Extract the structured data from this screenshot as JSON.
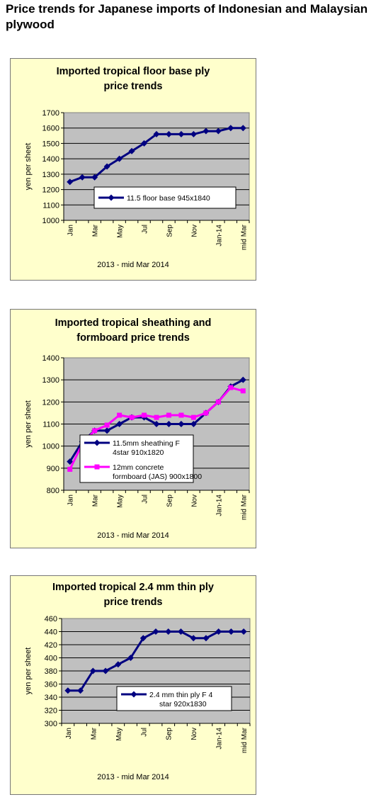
{
  "page": {
    "title": "Price trends for Japanese imports of Indonesian and Malaysian plywood"
  },
  "chart_data": [
    {
      "type": "line",
      "title_lines": [
        "Imported tropical floor base ply",
        "price trends"
      ],
      "xlabel": "2013 - mid Mar 2014",
      "ylabel": "yen per sheet",
      "ylim": [
        1000,
        1700
      ],
      "yticks": [
        1000,
        1100,
        1200,
        1300,
        1400,
        1500,
        1600,
        1700
      ],
      "categories": [
        "Jan",
        "Feb",
        "Mar",
        "Apr",
        "May",
        "Jun",
        "Jul",
        "Aug",
        "Sep",
        "Oct",
        "Nov",
        "Dec",
        "Jan-14",
        "Feb-14",
        "mid Mar"
      ],
      "xtick_labels": [
        "Jan",
        "",
        "Mar",
        "",
        "May",
        "",
        "Jul",
        "",
        "Sep",
        "",
        "Nov",
        "",
        "Jan-14",
        "",
        "mid Mar"
      ],
      "grid": true,
      "legend_position": "center",
      "series": [
        {
          "name": "11.5 floor base 945x1840",
          "color": "#000080",
          "marker": "diamond",
          "values": [
            1250,
            1280,
            1280,
            1350,
            1400,
            1450,
            1500,
            1560,
            1560,
            1560,
            1560,
            1580,
            1580,
            1600,
            1600
          ]
        }
      ]
    },
    {
      "type": "line",
      "title_lines": [
        "Imported tropical sheathing and",
        "formboard price trends"
      ],
      "xlabel": "2013 - mid Mar 2014",
      "ylabel": "yen per sheet",
      "ylim": [
        800,
        1400
      ],
      "yticks": [
        800,
        900,
        1000,
        1100,
        1200,
        1300,
        1400
      ],
      "categories": [
        "Jan",
        "Feb",
        "Mar",
        "Apr",
        "May",
        "Jun",
        "Jul",
        "Aug",
        "Sep",
        "Oct",
        "Nov",
        "Dec",
        "Jan-14",
        "Feb-14",
        "mid Mar"
      ],
      "xtick_labels": [
        "Jan",
        "",
        "Mar",
        "",
        "May",
        "",
        "Jul",
        "",
        "Sep",
        "",
        "Nov",
        "",
        "Jan-14",
        "",
        "mid Mar"
      ],
      "grid": true,
      "legend_position": "left",
      "series": [
        {
          "name": "11.5mm sheathing F 4star 910x1820",
          "color": "#000080",
          "marker": "diamond",
          "values": [
            930,
            1020,
            1070,
            1070,
            1100,
            1130,
            1130,
            1100,
            1100,
            1100,
            1100,
            1150,
            1200,
            1270,
            1300
          ]
        },
        {
          "name": "12mm concrete formboard (JAS) 900x1800",
          "color": "#ff00ff",
          "marker": "square",
          "values": [
            895,
            1010,
            1070,
            1095,
            1140,
            1130,
            1140,
            1130,
            1140,
            1140,
            1130,
            1150,
            1200,
            1265,
            1250
          ]
        }
      ]
    },
    {
      "type": "line",
      "title_lines": [
        "Imported tropical 2.4 mm thin ply",
        "price trends"
      ],
      "xlabel": "2013 - mid Mar 2014",
      "ylabel": "yen per sheet",
      "ylim": [
        300,
        460
      ],
      "yticks": [
        300,
        320,
        340,
        360,
        380,
        400,
        420,
        440,
        460
      ],
      "categories": [
        "Jan",
        "Feb",
        "Mar",
        "Apr",
        "May",
        "Jun",
        "Jul",
        "Aug",
        "Sep",
        "Oct",
        "Nov",
        "Dec",
        "Jan-14",
        "Feb-14",
        "mid Mar"
      ],
      "xtick_labels": [
        "Jan",
        "",
        "Mar",
        "",
        "May",
        "",
        "Jul",
        "",
        "Sep",
        "",
        "Nov",
        "",
        "Jan-14",
        "",
        "mid Mar"
      ],
      "grid": true,
      "legend_position": "center",
      "series": [
        {
          "name": "2.4 mm thin ply F 4 star 920x1830",
          "color": "#000080",
          "marker": "diamond",
          "values": [
            350,
            350,
            380,
            380,
            390,
            400,
            430,
            440,
            440,
            440,
            430,
            430,
            440,
            440,
            440
          ]
        }
      ]
    }
  ]
}
